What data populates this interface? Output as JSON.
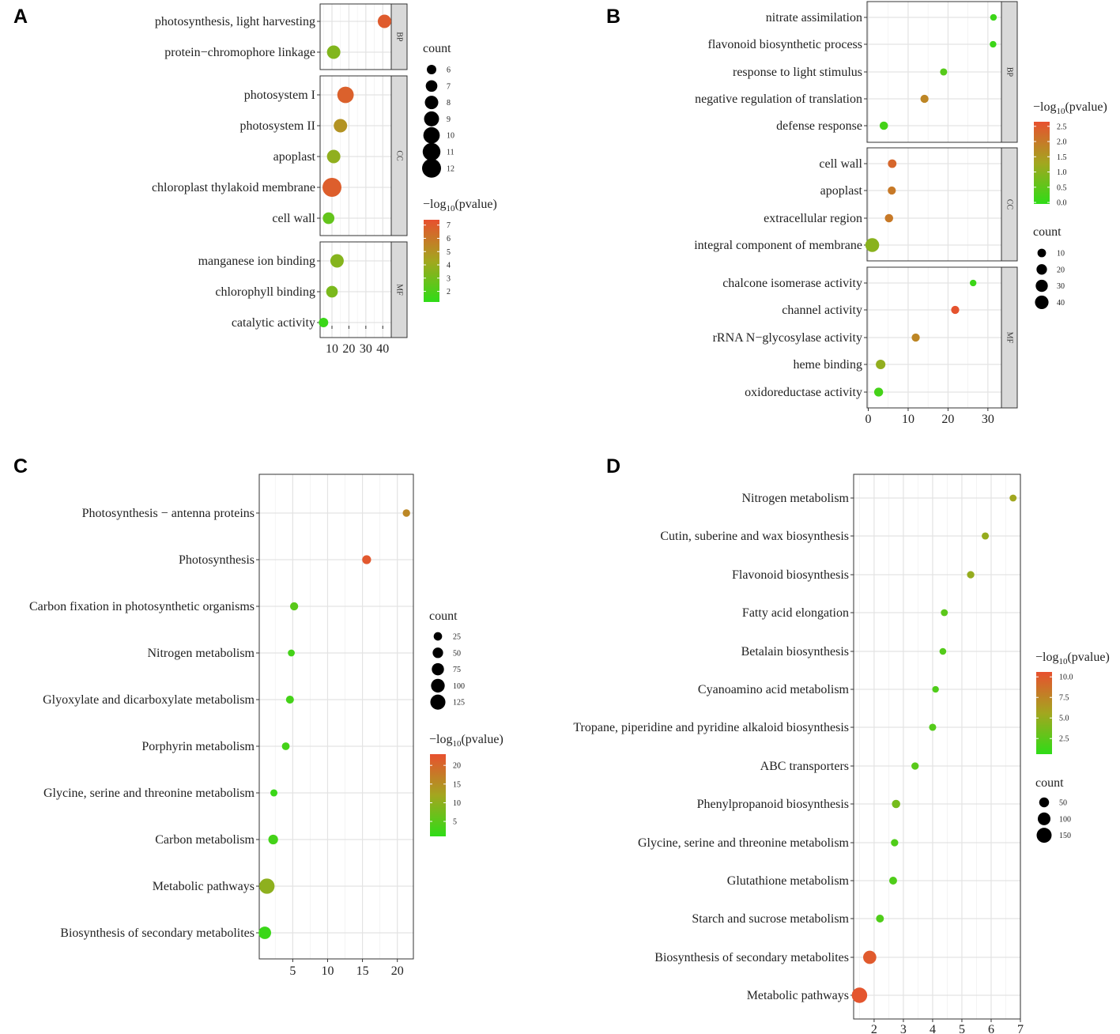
{
  "chart_data": [
    {
      "panel": "A",
      "type": "scatter",
      "x_ticks": [
        10,
        20,
        30,
        40
      ],
      "xlim": [
        3,
        45
      ],
      "size_legend": {
        "title": "count",
        "values": [
          6,
          7,
          8,
          9,
          10,
          11,
          12
        ],
        "range": [
          6,
          12
        ]
      },
      "color_legend": {
        "title_prefix": "−log",
        "title_sub": "10",
        "title_suffix": "(pvalue)",
        "ticks": [
          7,
          6,
          5,
          4,
          3,
          2
        ],
        "range": [
          1.2,
          7.4
        ]
      },
      "facets": [
        {
          "label": "BP",
          "points": [
            {
              "term": "photosynthesis, light harvesting",
              "x": 41,
              "count": 8,
              "neglog10p": 7.0
            },
            {
              "term": "protein−chromophore linkage",
              "x": 11,
              "count": 8,
              "neglog10p": 3.4
            }
          ]
        },
        {
          "label": "CC",
          "points": [
            {
              "term": "photosystem I",
              "x": 18,
              "count": 10,
              "neglog10p": 6.8
            },
            {
              "term": "photosystem II",
              "x": 15,
              "count": 8,
              "neglog10p": 5.0
            },
            {
              "term": "apoplast",
              "x": 11,
              "count": 8,
              "neglog10p": 3.8
            },
            {
              "term": "chloroplast thylakoid membrane",
              "x": 10,
              "count": 12,
              "neglog10p": 6.9
            },
            {
              "term": "cell wall",
              "x": 8,
              "count": 7,
              "neglog10p": 2.6
            }
          ]
        },
        {
          "label": "MF",
          "points": [
            {
              "term": "manganese ion binding",
              "x": 13,
              "count": 8,
              "neglog10p": 3.5
            },
            {
              "term": "chlorophyll binding",
              "x": 10,
              "count": 7,
              "neglog10p": 3.2
            },
            {
              "term": "catalytic activity",
              "x": 5,
              "count": 6,
              "neglog10p": 1.5
            }
          ]
        }
      ]
    },
    {
      "panel": "B",
      "type": "scatter",
      "x_ticks": [
        0,
        10,
        20,
        30
      ],
      "xlim": [
        -0.3,
        33.4
      ],
      "size_legend": {
        "title": "count",
        "values": [
          10,
          20,
          30,
          40
        ],
        "range": [
          1,
          45
        ]
      },
      "color_legend": {
        "title_prefix": "−log",
        "title_sub": "10",
        "title_suffix": "(pvalue)",
        "ticks": [
          2.5,
          2.0,
          1.5,
          1.0,
          0.5,
          0.0
        ],
        "range": [
          -0.05,
          2.65
        ]
      },
      "facets": [
        {
          "label": "BP",
          "points": [
            {
              "term": "nitrate assimilation",
              "x": 31.4,
              "count": 2,
              "neglog10p": 0.1
            },
            {
              "term": "flavonoid biosynthetic process",
              "x": 31.3,
              "count": 2,
              "neglog10p": 0.1
            },
            {
              "term": "response to light stimulus",
              "x": 18.9,
              "count": 4,
              "neglog10p": 0.4
            },
            {
              "term": "negative regulation of translation",
              "x": 14.1,
              "count": 8,
              "neglog10p": 1.8
            },
            {
              "term": "defense response",
              "x": 3.9,
              "count": 9,
              "neglog10p": 0.2
            }
          ]
        },
        {
          "label": "CC",
          "points": [
            {
              "term": "cell wall",
              "x": 6.0,
              "count": 10,
              "neglog10p": 2.3
            },
            {
              "term": "apoplast",
              "x": 5.9,
              "count": 8,
              "neglog10p": 2.0
            },
            {
              "term": "extracellular region",
              "x": 5.2,
              "count": 9,
              "neglog10p": 2.0
            },
            {
              "term": "integral component of membrane",
              "x": 1.0,
              "count": 42,
              "neglog10p": 1.0
            }
          ]
        },
        {
          "label": "MF",
          "points": [
            {
              "term": "chalcone isomerase activity",
              "x": 26.3,
              "count": 2,
              "neglog10p": 0.1
            },
            {
              "term": "channel activity",
              "x": 21.8,
              "count": 8,
              "neglog10p": 2.6
            },
            {
              "term": "rRNA N−glycosylase activity",
              "x": 11.9,
              "count": 8,
              "neglog10p": 1.8
            },
            {
              "term": "heme binding",
              "x": 3.1,
              "count": 15,
              "neglog10p": 1.1
            },
            {
              "term": "oxidoreductase activity",
              "x": 2.6,
              "count": 12,
              "neglog10p": 0.2
            }
          ]
        }
      ]
    },
    {
      "panel": "C",
      "type": "scatter",
      "x_ticks": [
        5,
        10,
        15,
        20
      ],
      "xlim": [
        0.2,
        22.3
      ],
      "size_legend": {
        "title": "count",
        "values": [
          25,
          50,
          75,
          100,
          125
        ],
        "range": [
          5,
          140
        ]
      },
      "color_legend": {
        "title_prefix": "−log",
        "title_sub": "10",
        "title_suffix": "(pvalue)",
        "ticks": [
          20,
          15,
          10,
          5
        ],
        "range": [
          1,
          23
        ]
      },
      "facets": [
        {
          "label": "",
          "points": [
            {
              "term": "Photosynthesis − antenna proteins",
              "x": 21.3,
              "count": 15,
              "neglog10p": 16
            },
            {
              "term": "Photosynthesis",
              "x": 15.6,
              "count": 30,
              "neglog10p": 22
            },
            {
              "term": "Carbon fixation in photosynthetic organisms",
              "x": 5.2,
              "count": 22,
              "neglog10p": 5
            },
            {
              "term": "Nitrogen metabolism",
              "x": 4.8,
              "count": 10,
              "neglog10p": 3
            },
            {
              "term": "Glyoxylate and dicarboxylate metabolism",
              "x": 4.6,
              "count": 20,
              "neglog10p": 3
            },
            {
              "term": "Porphyrin metabolism",
              "x": 4.0,
              "count": 18,
              "neglog10p": 3
            },
            {
              "term": "Glycine, serine and threonine metabolism",
              "x": 2.3,
              "count": 12,
              "neglog10p": 2
            },
            {
              "term": "Carbon metabolism",
              "x": 2.2,
              "count": 40,
              "neglog10p": 3
            },
            {
              "term": "Metabolic pathways",
              "x": 1.3,
              "count": 130,
              "neglog10p": 10
            },
            {
              "term": "Biosynthesis of secondary metabolites",
              "x": 1.0,
              "count": 80,
              "neglog10p": 2
            }
          ]
        }
      ]
    },
    {
      "panel": "D",
      "type": "scatter",
      "x_ticks": [
        2,
        3,
        4,
        5,
        6,
        7
      ],
      "xlim": [
        1.3,
        7.0
      ],
      "size_legend": {
        "title": "count",
        "values": [
          50,
          100,
          150
        ],
        "range": [
          5,
          170
        ]
      },
      "color_legend": {
        "title_prefix": "−log",
        "title_sub": "10",
        "title_suffix": "(pvalue)",
        "ticks": [
          10.0,
          7.5,
          5.0,
          2.5
        ],
        "range": [
          0.6,
          10.6
        ]
      },
      "facets": [
        {
          "label": "",
          "points": [
            {
              "term": "Nitrogen metabolism",
              "x": 6.75,
              "count": 12,
              "neglog10p": 5.5
            },
            {
              "term": "Cutin, suberine and wax biosynthesis",
              "x": 5.8,
              "count": 14,
              "neglog10p": 5.0
            },
            {
              "term": "Flavonoid biosynthesis",
              "x": 5.3,
              "count": 16,
              "neglog10p": 5.0
            },
            {
              "term": "Fatty acid elongation",
              "x": 4.4,
              "count": 12,
              "neglog10p": 2.5
            },
            {
              "term": "Betalain biosynthesis",
              "x": 4.35,
              "count": 10,
              "neglog10p": 2.2
            },
            {
              "term": "Cyanoamino acid metabolism",
              "x": 4.1,
              "count": 8,
              "neglog10p": 2.0
            },
            {
              "term": "Tropane, piperidine and pyridine alkaloid biosynthesis",
              "x": 4.0,
              "count": 14,
              "neglog10p": 2.2
            },
            {
              "term": "ABC transporters",
              "x": 3.4,
              "count": 16,
              "neglog10p": 2.4
            },
            {
              "term": "Phenylpropanoid biosynthesis",
              "x": 2.75,
              "count": 28,
              "neglog10p": 3.6
            },
            {
              "term": "Glycine, serine and threonine metabolism",
              "x": 2.7,
              "count": 16,
              "neglog10p": 2.0
            },
            {
              "term": "Glutathione metabolism",
              "x": 2.65,
              "count": 22,
              "neglog10p": 2.0
            },
            {
              "term": "Starch and sucrose metabolism",
              "x": 2.2,
              "count": 22,
              "neglog10p": 2.0
            },
            {
              "term": "Biosynthesis of secondary metabolites",
              "x": 1.85,
              "count": 110,
              "neglog10p": 10.0
            },
            {
              "term": "Metabolic pathways",
              "x": 1.5,
              "count": 160,
              "neglog10p": 10.3
            }
          ]
        }
      ]
    }
  ]
}
